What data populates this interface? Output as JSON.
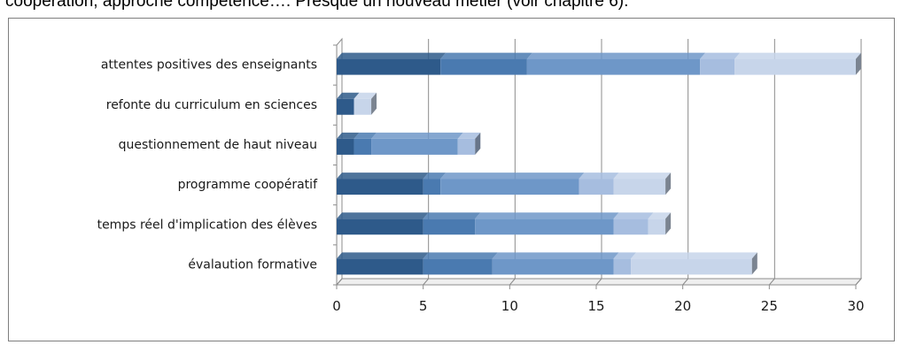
{
  "header": {
    "text": "coopération, approche compétence…. Presque un nouveau métier (voir chapitre 6)."
  },
  "chart_data": {
    "type": "bar",
    "orientation": "horizontal",
    "stacked": true,
    "three_d": true,
    "categories": [
      "attentes positives des enseignants",
      "refonte du curriculum en sciences",
      "questionnement de haut niveau",
      "programme coopératif",
      "temps réel d'implication des élèves",
      "évalaution formative"
    ],
    "series": [
      {
        "values": [
          6,
          1,
          1,
          5,
          5,
          5
        ],
        "color": "#2e5a8a"
      },
      {
        "values": [
          5,
          0,
          1,
          1,
          3,
          4
        ],
        "color": "#4a7ab0"
      },
      {
        "values": [
          10,
          0,
          5,
          8,
          8,
          7
        ],
        "color": "#6e97c8"
      },
      {
        "values": [
          2,
          0,
          1,
          2,
          2,
          1
        ],
        "color": "#a6bddf"
      },
      {
        "values": [
          7,
          1,
          0,
          3,
          1,
          7
        ],
        "color": "#c7d5ea"
      }
    ],
    "xlim": [
      0,
      30
    ],
    "xticks": [
      "0",
      "5",
      "10",
      "15",
      "20",
      "25",
      "30"
    ],
    "grid": true,
    "legend": "none"
  }
}
